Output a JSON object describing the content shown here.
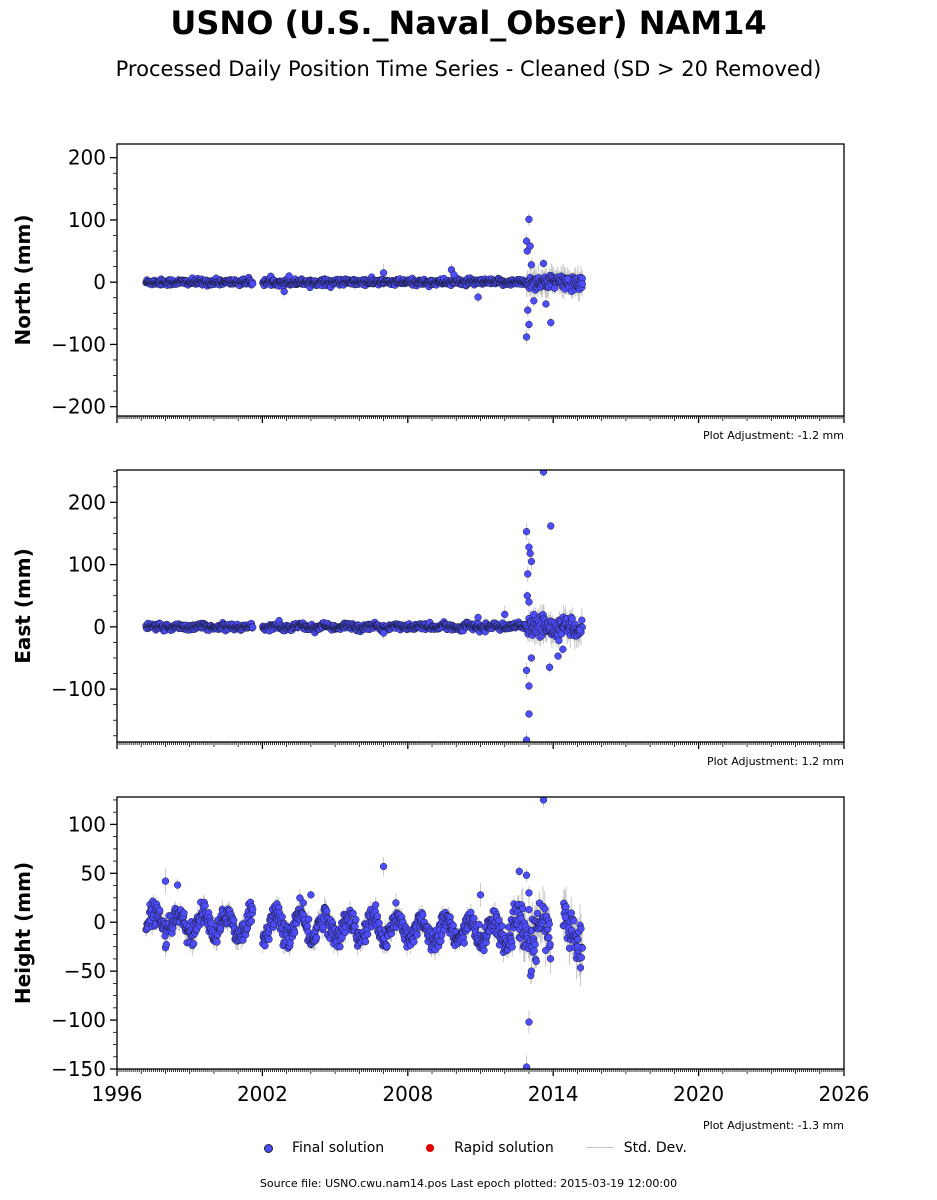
{
  "header": {
    "title": "USNO (U.S._Naval_Obser) NAM14",
    "subtitle": "Processed Daily Position Time Series - Cleaned (SD > 20 Removed)"
  },
  "colors": {
    "final": "#4d4dff",
    "rapid": "#e00000",
    "std_dev": "#c8c8c8",
    "axis": "#000000"
  },
  "legend": {
    "final_label": "Final solution",
    "rapid_label": "Rapid solution",
    "std_label": "Std. Dev."
  },
  "footer": {
    "source": "Source file: USNO.cwu.nam14.pos  Last epoch plotted: 2015-03-19 12:00:00"
  },
  "chart_data": [
    {
      "type": "scatter",
      "ylabel": "North (mm)",
      "xlim": [
        1996,
        2026
      ],
      "ylim": [
        -215,
        222
      ],
      "yticks": [
        -200,
        -100,
        0,
        100,
        200
      ],
      "xticks": [
        1996,
        2002,
        2008,
        2014,
        2020,
        2026
      ],
      "show_xtick_labels": false,
      "adjustment": "Plot Adjustment: -1.2 mm",
      "data_start": 1997.2,
      "data_end": 2015.2,
      "gaps": [
        [
          2001.6,
          2002.0
        ]
      ],
      "noise": {
        "base": 2.5,
        "late": 6,
        "late_from": 2012.9
      },
      "seasonal": 0,
      "outliers": [
        [
          2002.9,
          -15
        ],
        [
          2003.1,
          10
        ],
        [
          2007.0,
          15
        ],
        [
          2009.8,
          20
        ],
        [
          2009.9,
          12
        ],
        [
          2010.9,
          -24
        ],
        [
          2012.9,
          66
        ],
        [
          2012.93,
          50
        ],
        [
          2013.0,
          101
        ],
        [
          2013.05,
          58
        ],
        [
          2013.1,
          28
        ],
        [
          2012.95,
          -45
        ],
        [
          2013.0,
          -68
        ],
        [
          2012.9,
          -88
        ],
        [
          2013.2,
          -30
        ],
        [
          2013.6,
          30
        ],
        [
          2013.7,
          -35
        ],
        [
          2013.9,
          -65
        ],
        [
          2014.6,
          5
        ],
        [
          2015.2,
          -3
        ]
      ]
    },
    {
      "type": "scatter",
      "ylabel": "East (mm)",
      "xlim": [
        1996,
        2026
      ],
      "ylim": [
        -185,
        252
      ],
      "yticks": [
        -100,
        0,
        100,
        200
      ],
      "xticks": [
        1996,
        2002,
        2008,
        2014,
        2020,
        2026
      ],
      "show_xtick_labels": false,
      "adjustment": "Plot Adjustment: 1.2 mm",
      "data_start": 1997.2,
      "data_end": 2015.2,
      "gaps": [
        [
          2001.6,
          2002.0
        ]
      ],
      "noise": {
        "base": 2.5,
        "late": 8,
        "late_from": 2012.9
      },
      "seasonal": 2,
      "outliers": [
        [
          2007.0,
          -10
        ],
        [
          2010.9,
          15
        ],
        [
          2012.0,
          20
        ],
        [
          2012.9,
          153
        ],
        [
          2013.0,
          128
        ],
        [
          2013.05,
          118
        ],
        [
          2013.1,
          105
        ],
        [
          2012.95,
          85
        ],
        [
          2012.93,
          50
        ],
        [
          2013.0,
          40
        ],
        [
          2012.9,
          -70
        ],
        [
          2013.0,
          -95
        ],
        [
          2013.1,
          -50
        ],
        [
          2013.0,
          -140
        ],
        [
          2012.9,
          -182
        ],
        [
          2013.2,
          20
        ],
        [
          2013.6,
          249
        ],
        [
          2013.9,
          162
        ],
        [
          2013.85,
          -65
        ],
        [
          2014.2,
          -47
        ],
        [
          2014.4,
          -36
        ],
        [
          2015.1,
          -5
        ]
      ]
    },
    {
      "type": "scatter",
      "ylabel": "Height (mm)",
      "xlim": [
        1996,
        2026
      ],
      "ylim": [
        -150,
        128
      ],
      "yticks": [
        -150,
        -100,
        -50,
        0,
        50,
        100
      ],
      "xticks": [
        1996,
        2002,
        2008,
        2014,
        2020,
        2026
      ],
      "show_xtick_labels": true,
      "adjustment": "Plot Adjustment: -1.3 mm",
      "data_start": 1997.2,
      "data_end": 2015.2,
      "gaps": [
        [
          2001.6,
          2002.0
        ],
        [
          2013.9,
          2014.4
        ]
      ],
      "noise": {
        "base": 6,
        "late": 12,
        "late_from": 2012.5
      },
      "seasonal": 12,
      "trend_end": -12,
      "outliers": [
        [
          1998.0,
          42
        ],
        [
          1998.5,
          38
        ],
        [
          2004.0,
          28
        ],
        [
          2007.0,
          57
        ],
        [
          2011.0,
          28
        ],
        [
          2012.6,
          52
        ],
        [
          2012.9,
          48
        ],
        [
          2013.0,
          30
        ],
        [
          2013.0,
          -102
        ],
        [
          2012.9,
          -148
        ],
        [
          2013.1,
          -50
        ],
        [
          2013.3,
          -40
        ],
        [
          2013.6,
          125
        ],
        [
          2014.5,
          5
        ],
        [
          2015.0,
          -25
        ]
      ]
    }
  ]
}
